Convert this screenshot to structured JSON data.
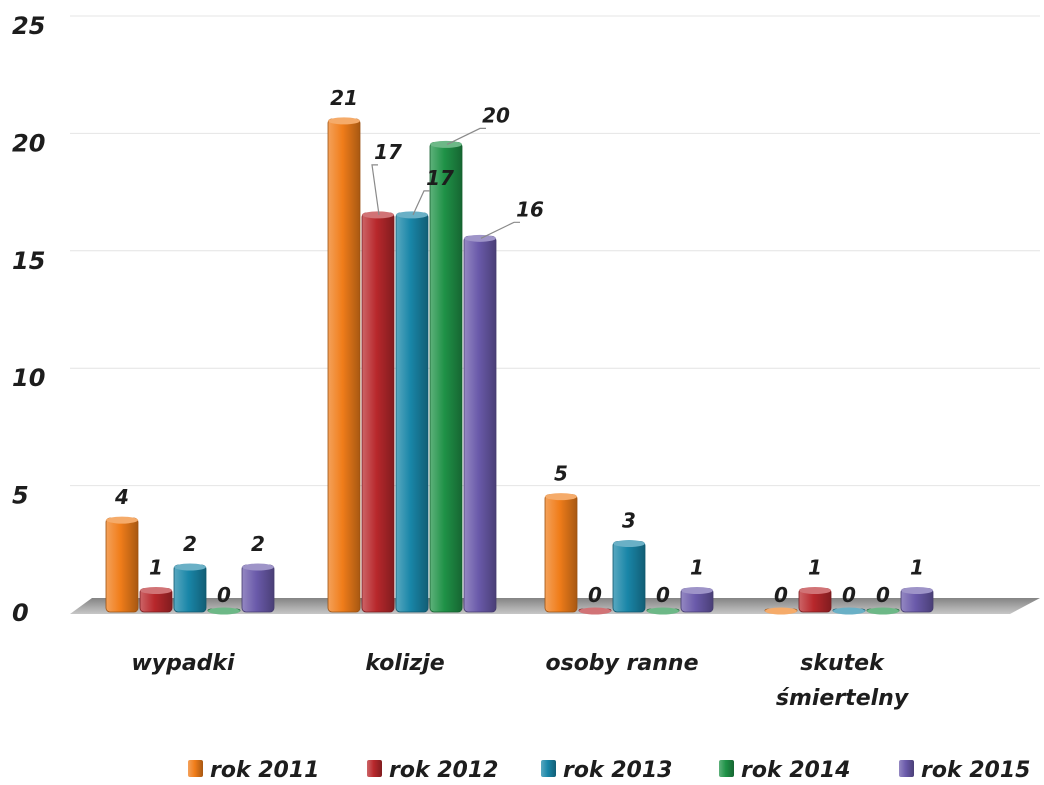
{
  "chart_data": {
    "type": "bar",
    "categories": [
      "wypadki",
      "kolizje",
      "osoby ranne",
      "skutek śmiertelny"
    ],
    "series": [
      {
        "name": "rok 2011",
        "color": "#f07d1a",
        "values": [
          4,
          21,
          5,
          0
        ]
      },
      {
        "name": "rok 2012",
        "color": "#b8282c",
        "values": [
          1,
          17,
          0,
          1
        ]
      },
      {
        "name": "rok 2013",
        "color": "#1986a8",
        "values": [
          2,
          17,
          3,
          0
        ]
      },
      {
        "name": "rok 2014",
        "color": "#1f9247",
        "values": [
          0,
          20,
          0,
          0
        ]
      },
      {
        "name": "rok 2015",
        "color": "#6a5aaa",
        "values": [
          2,
          16,
          1,
          1
        ]
      }
    ],
    "y_ticks": [
      "0",
      "5",
      "10",
      "15",
      "20",
      "25"
    ],
    "ylim": [
      0,
      25
    ],
    "grid": true,
    "legend_position": "bottom-right",
    "title": "",
    "xlabel": "",
    "ylabel": ""
  }
}
